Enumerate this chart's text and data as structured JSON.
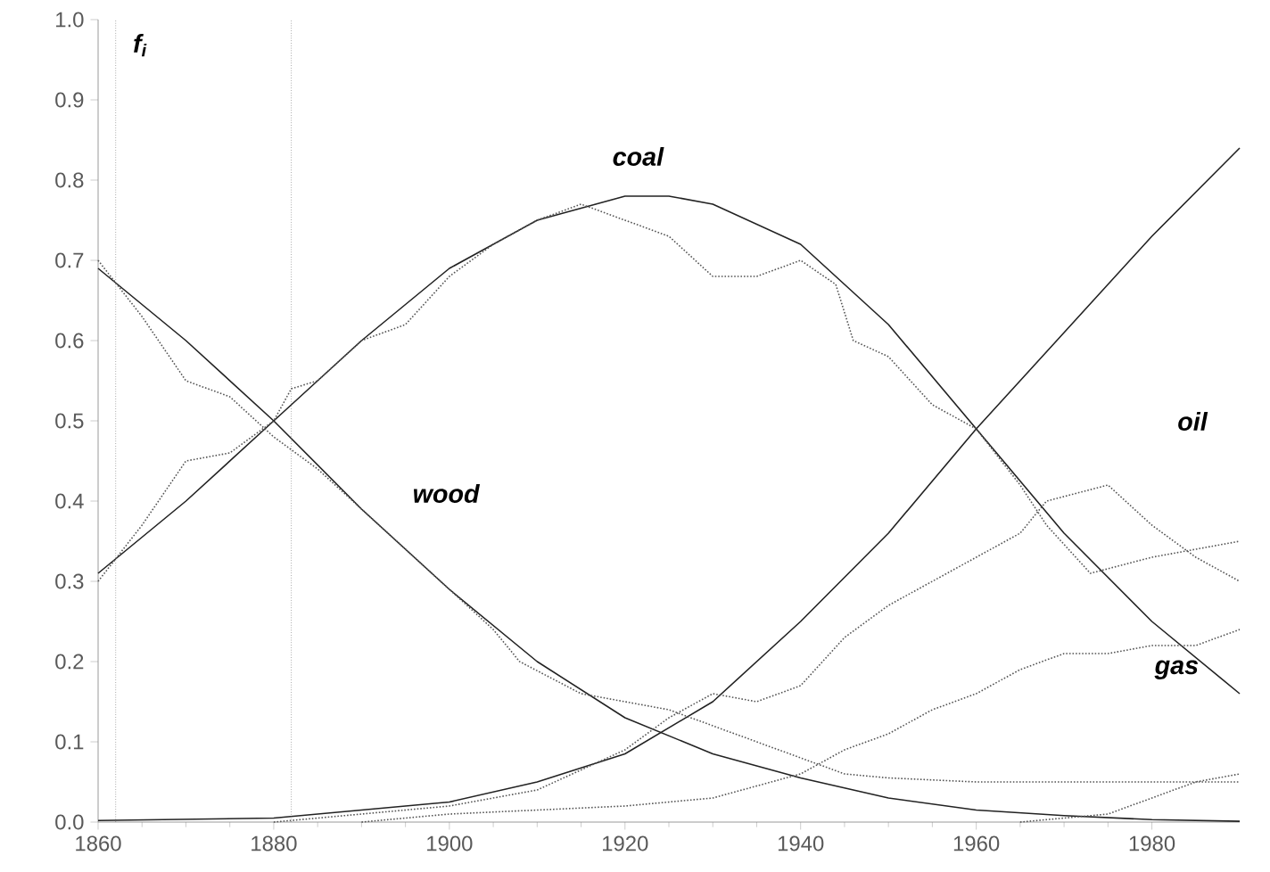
{
  "chart_data": {
    "type": "line",
    "ylabel": "*f$_{i}$*",
    "xlim": [
      1860,
      1990
    ],
    "ylim": [
      0,
      1
    ],
    "xticks": [
      1860,
      1880,
      1900,
      1920,
      1940,
      1960,
      1980
    ],
    "yticks": [
      {
        "value": 0,
        "label": "0.0"
      },
      0.1,
      0.2,
      0.3,
      0.4,
      0.5,
      0.6,
      0.7,
      0.8,
      0.9,
      {
        "value": 1,
        "label": "1.0"
      }
    ],
    "grid": false,
    "marker": "none",
    "ref_lines": [
      {
        "axis": "x",
        "value": 1862,
        "line_style": "dotted",
        "color": "#777777"
      },
      {
        "axis": "x",
        "value": 1882,
        "line_style": "dotted",
        "color": "#777777"
      }
    ],
    "annotations": [
      "wood",
      "coal",
      "oil",
      "gas"
    ],
    "series": [
      {
        "color": "#222222",
        "line_style": "solid",
        "x": [
          1860,
          1870,
          1880,
          1890,
          1900,
          1910,
          1920,
          1930,
          1940,
          1950,
          1960,
          1970,
          1980,
          1990
        ],
        "values": [
          0.69,
          0.6,
          0.5,
          0.39,
          0.29,
          0.2,
          0.13,
          0.085,
          0.055,
          0.03,
          0.015,
          0.008,
          0.003,
          0.001
        ]
      },
      {
        "color": "#222222",
        "line_style": "solid",
        "x": [
          1860,
          1870,
          1880,
          1890,
          1900,
          1910,
          1920,
          1925,
          1930,
          1940,
          1950,
          1960,
          1970,
          1980,
          1990
        ],
        "values": [
          0.31,
          0.4,
          0.5,
          0.6,
          0.69,
          0.75,
          0.78,
          0.78,
          0.77,
          0.72,
          0.62,
          0.49,
          0.36,
          0.25,
          0.16
        ]
      },
      {
        "color": "#222222",
        "line_style": "solid",
        "x": [
          1860,
          1880,
          1890,
          1900,
          1910,
          1920,
          1930,
          1940,
          1950,
          1960,
          1970,
          1980,
          1990
        ],
        "values": [
          0.002,
          0.005,
          0.015,
          0.025,
          0.05,
          0.085,
          0.15,
          0.25,
          0.36,
          0.49,
          0.61,
          0.73,
          0.84
        ]
      },
      {
        "color": "#555555",
        "line_style": "dotted",
        "x": [
          1860,
          1865,
          1870,
          1875,
          1880,
          1885,
          1890,
          1900,
          1905,
          1908,
          1915,
          1920,
          1925,
          1930,
          1940,
          1945,
          1950,
          1960,
          1970,
          1980,
          1990
        ],
        "values": [
          0.7,
          0.63,
          0.55,
          0.53,
          0.48,
          0.44,
          0.39,
          0.29,
          0.24,
          0.2,
          0.16,
          0.15,
          0.14,
          0.12,
          0.08,
          0.06,
          0.055,
          0.05,
          0.05,
          0.05,
          0.05
        ]
      },
      {
        "color": "#555555",
        "line_style": "dotted",
        "x": [
          1860,
          1865,
          1870,
          1875,
          1880,
          1882,
          1885,
          1890,
          1895,
          1900,
          1905,
          1910,
          1915,
          1920,
          1925,
          1930,
          1935,
          1940,
          1944,
          1946,
          1950,
          1955,
          1960,
          1965,
          1968,
          1973,
          1980,
          1985,
          1990
        ],
        "values": [
          0.3,
          0.37,
          0.45,
          0.46,
          0.5,
          0.54,
          0.55,
          0.6,
          0.62,
          0.68,
          0.72,
          0.75,
          0.77,
          0.75,
          0.73,
          0.68,
          0.68,
          0.7,
          0.67,
          0.6,
          0.58,
          0.52,
          0.49,
          0.42,
          0.37,
          0.31,
          0.33,
          0.34,
          0.35
        ]
      },
      {
        "color": "#555555",
        "line_style": "dotted",
        "x": [
          1880,
          1890,
          1900,
          1910,
          1920,
          1925,
          1930,
          1935,
          1940,
          1945,
          1950,
          1955,
          1960,
          1965,
          1968,
          1975,
          1980,
          1985,
          1990
        ],
        "values": [
          0.0,
          0.01,
          0.02,
          0.04,
          0.09,
          0.13,
          0.16,
          0.15,
          0.17,
          0.23,
          0.27,
          0.3,
          0.33,
          0.36,
          0.4,
          0.42,
          0.37,
          0.33,
          0.3
        ]
      },
      {
        "color": "#555555",
        "line_style": "dotted",
        "x": [
          1890,
          1900,
          1920,
          1930,
          1940,
          1945,
          1950,
          1955,
          1960,
          1965,
          1970,
          1975,
          1980,
          1985,
          1990
        ],
        "values": [
          0.0,
          0.01,
          0.02,
          0.03,
          0.06,
          0.09,
          0.11,
          0.14,
          0.16,
          0.19,
          0.21,
          0.21,
          0.22,
          0.22,
          0.24
        ]
      },
      {
        "color": "#555555",
        "line_style": "dotted",
        "x": [
          1965,
          1975,
          1980,
          1985,
          1990
        ],
        "values": [
          0.0,
          0.01,
          0.03,
          0.05,
          0.06
        ]
      }
    ]
  }
}
